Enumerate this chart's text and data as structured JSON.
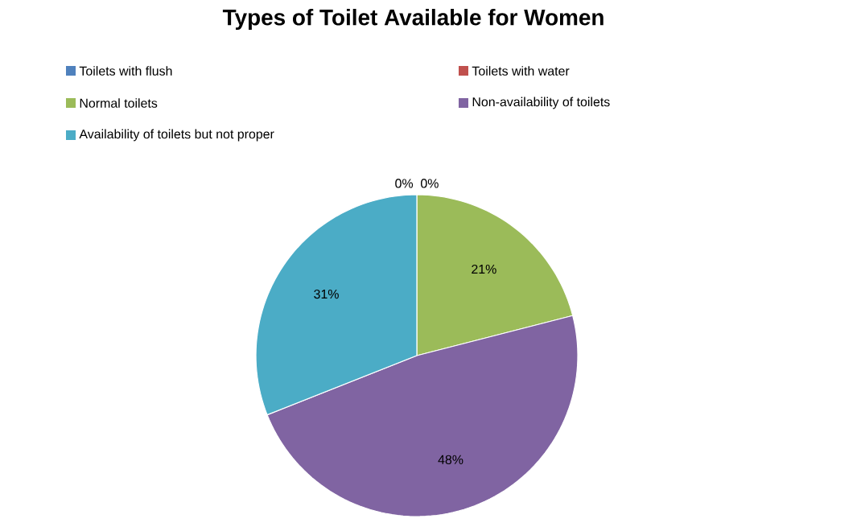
{
  "chart_data": {
    "type": "pie",
    "title": "Types of Toilet Available for Women",
    "categories": [
      "Toilets with flush",
      "Toilets with water",
      "Normal toilets",
      "Non-availability of toilets",
      "Availability of toilets but not proper"
    ],
    "values": [
      0,
      0,
      21,
      48,
      31
    ],
    "colors": [
      "#4f81bd",
      "#c0504d",
      "#9bbb59",
      "#8064a2",
      "#4bacc6"
    ],
    "value_labels": [
      "0%",
      "0%",
      "21%",
      "48%",
      "31%"
    ],
    "legend": "top"
  }
}
